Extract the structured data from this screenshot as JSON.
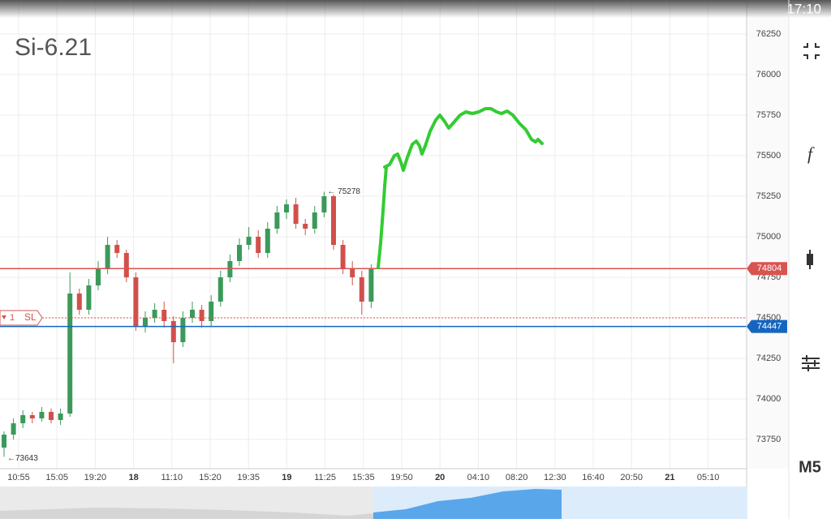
{
  "status_bar": {
    "time": "17:10"
  },
  "toolbar": {
    "functions": "f",
    "timeframe": "M5"
  },
  "chart_data": {
    "type": "candlestick",
    "title": "Si-6.21",
    "ylim": [
      73570,
      76460
    ],
    "yticks": [
      73750,
      74000,
      74250,
      74500,
      74750,
      75000,
      75250,
      75500,
      75750,
      76000,
      76250
    ],
    "x_labels": [
      "10:55",
      "15:05",
      "19:20",
      "18",
      "11:10",
      "15:20",
      "19:35",
      "19",
      "11:25",
      "15:35",
      "19:50",
      "20",
      "04:10",
      "08:20",
      "12:30",
      "16:40",
      "20:50",
      "21",
      "05:10"
    ],
    "grid": true,
    "up_color": "#3b9a5a",
    "down_color": "#d2504a",
    "open": [
      73700,
      73780,
      73850,
      73900,
      73880,
      73920,
      73870,
      73910,
      74650,
      74550,
      74700,
      74800,
      74950,
      74900,
      74750,
      74450,
      74500,
      74550,
      74480,
      74350,
      74500,
      74550,
      74480,
      74600,
      74750,
      74850,
      74950,
      75000,
      74900,
      75050,
      75150,
      75200,
      75080,
      75050,
      75150,
      75250,
      74950,
      74800,
      74750,
      74600
    ],
    "high": [
      73800,
      73880,
      73930,
      73920,
      73950,
      73940,
      73940,
      74780,
      74680,
      74740,
      74850,
      75000,
      74980,
      74920,
      74780,
      74540,
      74590,
      74600,
      74510,
      74540,
      74600,
      74580,
      74640,
      74790,
      74890,
      74990,
      75060,
      75040,
      75090,
      75190,
      75230,
      75240,
      75110,
      75190,
      75278,
      75260,
      74980,
      74850,
      74790,
      74830
    ],
    "low": [
      73643,
      73750,
      73820,
      73850,
      73860,
      73850,
      73840,
      73890,
      74520,
      74520,
      74670,
      74770,
      74870,
      74720,
      74420,
      74410,
      74470,
      74440,
      74220,
      74320,
      74470,
      74440,
      74450,
      74570,
      74720,
      74820,
      74920,
      74870,
      74870,
      75020,
      75110,
      75050,
      75010,
      75020,
      75120,
      74920,
      74770,
      74700,
      74520,
      74560
    ],
    "close": [
      73780,
      73850,
      73900,
      73880,
      73920,
      73870,
      73910,
      74650,
      74550,
      74700,
      74800,
      74950,
      74900,
      74750,
      74450,
      74500,
      74550,
      74480,
      74350,
      74500,
      74550,
      74480,
      74600,
      74750,
      74850,
      74950,
      75000,
      74900,
      75050,
      75150,
      75200,
      75080,
      75050,
      75150,
      75250,
      74950,
      74800,
      74750,
      74600,
      74804
    ],
    "price_lines": [
      {
        "value": 74804,
        "color": "#d9534f",
        "label": "74804"
      },
      {
        "value": 74447,
        "color": "#1565c0",
        "label": "74447"
      }
    ],
    "order": {
      "value": 74500,
      "count": "1",
      "label": "SL"
    },
    "annotations": [
      {
        "value": 75278,
        "label": "← 75278",
        "candle": 34
      },
      {
        "value": 73643,
        "label": "←73643",
        "candle": 0
      }
    ]
  }
}
